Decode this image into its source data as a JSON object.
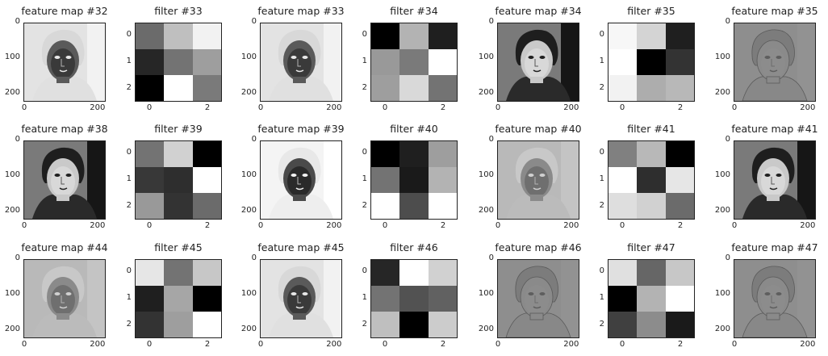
{
  "figure": {
    "rows": [
      {
        "panels": [
          {
            "kind": "feature",
            "title": "feature map #32",
            "tone": "inverted",
            "yticks": [
              "0",
              "100",
              "200"
            ],
            "xticks": [
              "0",
              "200"
            ]
          },
          {
            "kind": "filter",
            "title": "filter #33",
            "cells": [
              [
                0.42,
                0.75,
                0.95
              ],
              [
                0.15,
                0.45,
                0.62
              ],
              [
                0.0,
                1.0,
                0.48
              ]
            ],
            "yticks": [
              "0",
              "1",
              "2"
            ],
            "xticks": [
              "0",
              "2"
            ]
          },
          {
            "kind": "feature",
            "title": "feature map #33",
            "tone": "inverted",
            "yticks": [
              "0",
              "100",
              "200"
            ],
            "xticks": [
              "0",
              "200"
            ]
          },
          {
            "kind": "filter",
            "title": "filter #34",
            "cells": [
              [
                0.0,
                0.7,
                0.12
              ],
              [
                0.6,
                0.48,
                1.0
              ],
              [
                0.62,
                0.85,
                0.45
              ]
            ],
            "yticks": [
              "0",
              "1",
              "2"
            ],
            "xticks": [
              "0",
              "2"
            ]
          },
          {
            "kind": "feature",
            "title": "feature map #34",
            "tone": "normal",
            "yticks": [
              "0",
              "100",
              "200"
            ],
            "xticks": [
              "0",
              "200"
            ]
          },
          {
            "kind": "filter",
            "title": "filter #35",
            "cells": [
              [
                0.97,
                0.83,
                0.12
              ],
              [
                1.0,
                0.0,
                0.2
              ],
              [
                0.95,
                0.68,
                0.72
              ]
            ],
            "yticks": [
              "0",
              "1",
              "2"
            ],
            "xticks": [
              "0",
              "2"
            ]
          },
          {
            "kind": "feature",
            "title": "feature map #35",
            "tone": "edge",
            "yticks": [
              "0",
              "100",
              "200"
            ],
            "xticks": [
              "0",
              "200"
            ]
          }
        ]
      },
      {
        "panels": [
          {
            "kind": "feature",
            "title": "feature map #38",
            "tone": "normal",
            "yticks": [
              "0",
              "100",
              "200"
            ],
            "xticks": [
              "0",
              "200"
            ]
          },
          {
            "kind": "filter",
            "title": "filter #39",
            "cells": [
              [
                0.45,
                0.82,
                0.0
              ],
              [
                0.22,
                0.18,
                1.0
              ],
              [
                0.6,
                0.2,
                0.42
              ]
            ],
            "yticks": [
              "0",
              "1",
              "2"
            ],
            "xticks": [
              "0",
              "2"
            ]
          },
          {
            "kind": "feature",
            "title": "feature map #39",
            "tone": "strong-inverted",
            "yticks": [
              "0",
              "100",
              "200"
            ],
            "xticks": [
              "0",
              "200"
            ]
          },
          {
            "kind": "filter",
            "title": "filter #40",
            "cells": [
              [
                0.0,
                0.12,
                0.62
              ],
              [
                0.45,
                0.1,
                0.7
              ],
              [
                1.0,
                0.3,
                1.0
              ]
            ],
            "yticks": [
              "0",
              "1",
              "2"
            ],
            "xticks": [
              "0",
              "2"
            ]
          },
          {
            "kind": "feature",
            "title": "feature map #40",
            "tone": "inverted-light",
            "yticks": [
              "0",
              "100",
              "200"
            ],
            "xticks": [
              "0",
              "200"
            ]
          },
          {
            "kind": "filter",
            "title": "filter #41",
            "cells": [
              [
                0.5,
                0.72,
                0.0
              ],
              [
                1.0,
                0.18,
                0.9
              ],
              [
                0.87,
                0.82,
                0.42
              ]
            ],
            "yticks": [
              "0",
              "1",
              "2"
            ],
            "xticks": [
              "0",
              "2"
            ]
          },
          {
            "kind": "feature",
            "title": "feature map #41",
            "tone": "normal",
            "yticks": [
              "0",
              "100",
              "200"
            ],
            "xticks": [
              "0",
              "200"
            ]
          }
        ]
      },
      {
        "panels": [
          {
            "kind": "feature",
            "title": "feature map #44",
            "tone": "inverted-light",
            "yticks": [
              "0",
              "100",
              "200"
            ],
            "xticks": [
              "0",
              "200"
            ]
          },
          {
            "kind": "filter",
            "title": "filter #45",
            "cells": [
              [
                0.9,
                0.45,
                0.78
              ],
              [
                0.12,
                0.65,
                0.0
              ],
              [
                0.2,
                0.62,
                1.0
              ]
            ],
            "yticks": [
              "0",
              "1",
              "2"
            ],
            "xticks": [
              "0",
              "2"
            ]
          },
          {
            "kind": "feature",
            "title": "feature map #45",
            "tone": "inverted",
            "yticks": [
              "0",
              "100",
              "200"
            ],
            "xticks": [
              "0",
              "200"
            ]
          },
          {
            "kind": "filter",
            "title": "filter #46",
            "cells": [
              [
                0.15,
                1.0,
                0.82
              ],
              [
                0.45,
                0.32,
                0.38
              ],
              [
                0.75,
                0.0,
                0.8
              ]
            ],
            "yticks": [
              "0",
              "1",
              "2"
            ],
            "xticks": [
              "0",
              "2"
            ]
          },
          {
            "kind": "feature",
            "title": "feature map #46",
            "tone": "edge",
            "yticks": [
              "0",
              "100",
              "200"
            ],
            "xticks": [
              "0",
              "200"
            ]
          },
          {
            "kind": "filter",
            "title": "filter #47",
            "cells": [
              [
                0.88,
                0.4,
                0.78
              ],
              [
                0.0,
                0.7,
                1.0
              ],
              [
                0.25,
                0.55,
                0.1
              ]
            ],
            "yticks": [
              "0",
              "1",
              "2"
            ],
            "xticks": [
              "0",
              "2"
            ]
          },
          {
            "kind": "feature",
            "title": "feature map #47",
            "tone": "edge",
            "yticks": [
              "0",
              "100",
              "200"
            ],
            "xticks": [
              "0",
              "200"
            ]
          }
        ]
      }
    ]
  }
}
